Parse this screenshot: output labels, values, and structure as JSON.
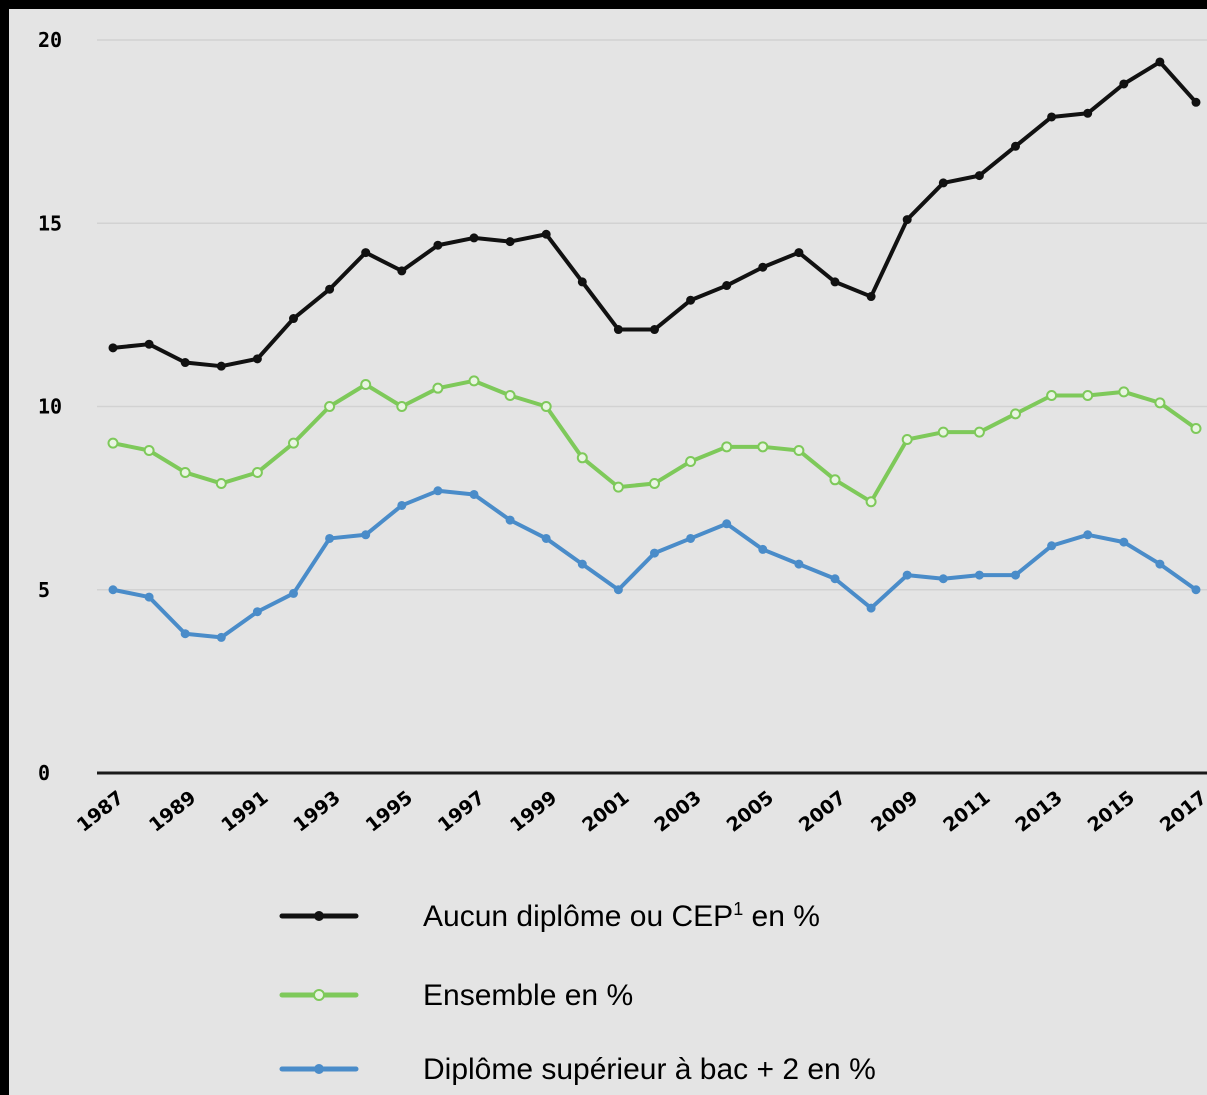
{
  "chart_data": {
    "type": "line",
    "title": "",
    "xlabel": "",
    "ylabel": "",
    "ylim": [
      0,
      20
    ],
    "yticks": [
      "0",
      "5",
      "10",
      "15",
      "20"
    ],
    "grid": true,
    "legend_position": "bottom",
    "x": [
      1987,
      1988,
      1989,
      1990,
      1991,
      1992,
      1993,
      1994,
      1995,
      1996,
      1997,
      1998,
      1999,
      2000,
      2001,
      2002,
      2003,
      2004,
      2005,
      2006,
      2007,
      2008,
      2009,
      2010,
      2011,
      2012,
      2013,
      2014,
      2015,
      2016,
      2017
    ],
    "xtick_labels": [
      "1987",
      "1989",
      "1991",
      "1993",
      "1995",
      "1997",
      "1999",
      "2001",
      "2003",
      "2005",
      "2007",
      "2009",
      "2011",
      "2013",
      "2015",
      "2017"
    ],
    "series": [
      {
        "key": "aucun",
        "legend_main": "Aucun diplôme ou CEP",
        "legend_sup": "1",
        "legend_tail": " en %",
        "color": "#111111",
        "marker": "filled",
        "values": [
          11.6,
          11.7,
          11.2,
          11.1,
          11.3,
          12.4,
          13.2,
          14.2,
          13.7,
          14.4,
          14.6,
          14.5,
          14.7,
          13.4,
          12.1,
          12.1,
          12.9,
          13.3,
          13.8,
          14.2,
          13.4,
          13.0,
          15.1,
          16.1,
          16.3,
          17.1,
          17.9,
          18.0,
          18.8,
          19.4,
          18.3
        ]
      },
      {
        "key": "ensemble",
        "legend_main": "Ensemble en %",
        "color": "#7ec95a",
        "marker": "hollow",
        "values": [
          9.0,
          8.8,
          8.2,
          7.9,
          8.2,
          9.0,
          10.0,
          10.6,
          10.0,
          10.5,
          10.7,
          10.3,
          10.0,
          8.6,
          7.8,
          7.9,
          8.5,
          8.9,
          8.9,
          8.8,
          8.0,
          7.4,
          9.1,
          9.3,
          9.3,
          9.8,
          10.3,
          10.3,
          10.4,
          10.1,
          9.4
        ]
      },
      {
        "key": "superieur",
        "legend_main": "Diplôme supérieur à bac + 2 en %",
        "color": "#4a8cc9",
        "marker": "filled",
        "values": [
          5.0,
          4.8,
          3.8,
          3.7,
          4.4,
          4.9,
          6.4,
          6.5,
          7.3,
          7.7,
          7.6,
          6.9,
          6.4,
          5.7,
          5.0,
          6.0,
          6.4,
          6.8,
          6.1,
          5.7,
          5.3,
          4.5,
          5.4,
          5.3,
          5.4,
          5.4,
          6.2,
          6.5,
          6.3,
          5.7,
          5.0
        ]
      }
    ]
  }
}
